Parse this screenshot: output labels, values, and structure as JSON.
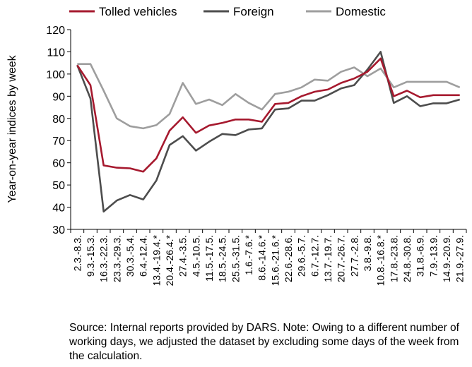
{
  "chart_data": {
    "type": "line",
    "ylabel": "Year-on-year indices by week",
    "ylim": [
      30,
      120
    ],
    "yticks": [
      30,
      40,
      50,
      60,
      70,
      80,
      90,
      100,
      110,
      120
    ],
    "grid": false,
    "legend_position": "top",
    "categories": [
      "2.3.-8.3.",
      "9.3.-15.3.",
      "16.3.-22.3.",
      "23.3.-29.3.",
      "30.3.-5.4.",
      "6.4.-12.4.",
      "13.4.-19.4.*",
      "20.4.-26.4.*",
      "27.4.-3.5.",
      "4.5.-10.5.",
      "11.5.-17.5.",
      "18.5.-24.5.",
      "25.5.-31.5.",
      "1.6.-7.6.*",
      "8.6.-14.6.*",
      "15.6.-21.6.*",
      "22.6.-28.6.",
      "29.6.-5.7.",
      "6.7.-12.7.",
      "13.7.-19.7.",
      "20.7.-26.7.",
      "27.7.-2.8.",
      "3.8.-9.8.",
      "10.8.-16.8.*",
      "17.8.-23.8.",
      "24.8.-30.8.",
      "31.8.-6.9.",
      "7.9.-13.9.",
      "14.9.-20.9.",
      "21.9.-27.9."
    ],
    "series": [
      {
        "name": "Tolled vehicles",
        "color": "#a6192e",
        "values": [
          104,
          95,
          58.8,
          57.8,
          57.5,
          56,
          62,
          74.5,
          80.5,
          73.5,
          76.8,
          78,
          79.5,
          79.5,
          78.5,
          86.5,
          87,
          90,
          92,
          93,
          96,
          98,
          101,
          107,
          90,
          92.5,
          89.5,
          90.5,
          90.5,
          90.5
        ]
      },
      {
        "name": "Foreign",
        "color": "#4d4d4d",
        "values": [
          104,
          89,
          38,
          43,
          45.5,
          43.5,
          52,
          68,
          72,
          65.5,
          69.5,
          73,
          72.5,
          75,
          75.5,
          84,
          84.5,
          88,
          88,
          90.5,
          93.5,
          95,
          102,
          110,
          87,
          90,
          85.5,
          86.8,
          86.8,
          88.5
        ]
      },
      {
        "name": "Domestic",
        "color": "#9e9e9e",
        "values": [
          104.5,
          104.5,
          92.5,
          80,
          76.5,
          75.5,
          77,
          82,
          96,
          86.5,
          88.5,
          86,
          91,
          87,
          84,
          91,
          92,
          94,
          97.5,
          97,
          101,
          103,
          99,
          102.5,
          94,
          96.5,
          96.5,
          96.5,
          96.5,
          94
        ]
      }
    ]
  },
  "footnote": "Source: Internal reports provided by DARS. Note: Owing to a different number of working days, we adjusted the dataset by excluding some days of the week from the calculation."
}
